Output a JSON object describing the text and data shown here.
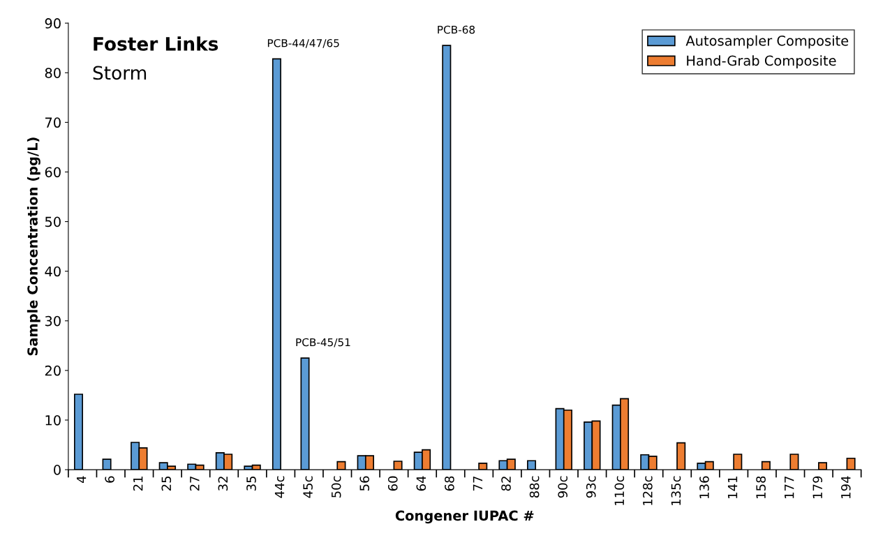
{
  "chart_data": {
    "type": "bar",
    "title": "Foster Links",
    "subtitle": "Storm",
    "xlabel": "Congener IUPAC #",
    "ylabel": "Sample Concentration (pg/L)",
    "categories": [
      "4",
      "6",
      "21",
      "25",
      "27",
      "32",
      "35",
      "44c",
      "45c",
      "50c",
      "56",
      "60",
      "64",
      "68",
      "77",
      "82",
      "88c",
      "90c",
      "93c",
      "110c",
      "128c",
      "135c",
      "136",
      "141",
      "158",
      "177",
      "179",
      "194"
    ],
    "series": [
      {
        "name": "Autosampler Composite",
        "color": "#5b9bd5",
        "values": [
          15.2,
          2.1,
          5.5,
          1.4,
          1.1,
          3.4,
          0.7,
          82.8,
          22.5,
          null,
          2.8,
          null,
          3.5,
          85.5,
          null,
          1.8,
          1.8,
          12.3,
          9.6,
          13.0,
          3.0,
          null,
          1.3,
          null,
          null,
          null,
          null,
          null
        ]
      },
      {
        "name": "Hand-Grab Composite",
        "color": "#ed7d31",
        "values": [
          null,
          null,
          4.4,
          0.7,
          0.9,
          3.1,
          0.9,
          null,
          null,
          1.6,
          2.8,
          1.7,
          4.0,
          null,
          1.3,
          2.1,
          null,
          12.0,
          9.8,
          14.3,
          2.7,
          5.4,
          1.6,
          3.1,
          1.6,
          3.1,
          1.4,
          2.3
        ]
      }
    ],
    "annotations": [
      {
        "text": "PCB-44/47/65",
        "x": "44c",
        "y": 82.8
      },
      {
        "text": "PCB-45/51",
        "x": "45c",
        "y": 22.5
      },
      {
        "text": "PCB-68",
        "x": "68",
        "y": 85.5
      }
    ],
    "ylim": [
      0,
      90
    ],
    "yticks": [
      0,
      10,
      20,
      30,
      40,
      50,
      60,
      70,
      80,
      90
    ],
    "grid": false,
    "legend": "top right"
  }
}
